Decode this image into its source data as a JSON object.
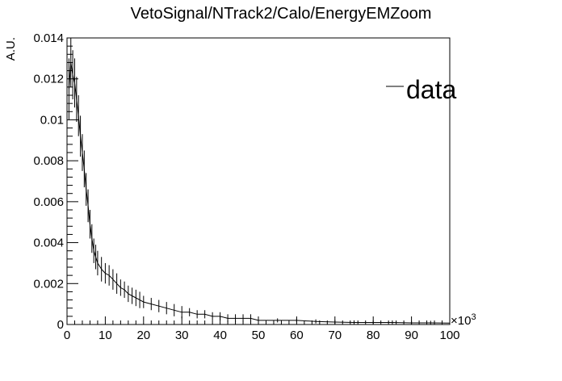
{
  "chart_data": {
    "type": "line",
    "title": "VetoSignal/NTrack2/Calo/EnergyEMZoom",
    "xlabel": "",
    "ylabel": "A.U.",
    "x_multiplier_label": "×10",
    "x_multiplier_exponent": "3",
    "xlim": [
      0,
      100
    ],
    "ylim": [
      0,
      0.014
    ],
    "x_ticks": [
      0,
      10,
      20,
      30,
      40,
      50,
      60,
      70,
      80,
      90,
      100
    ],
    "x_tick_labels": [
      "0",
      "10",
      "20",
      "30",
      "40",
      "50",
      "60",
      "70",
      "80",
      "90",
      "100"
    ],
    "y_ticks": [
      0,
      0.002,
      0.004,
      0.006,
      0.008,
      0.01,
      0.012,
      0.014
    ],
    "y_tick_labels": [
      "0",
      "0.002",
      "0.004",
      "0.006",
      "0.008",
      "0.01",
      "0.012",
      "0.014"
    ],
    "grid": false,
    "legend_position": "top-right",
    "series": [
      {
        "name": "data",
        "color": "#000000",
        "x": [
          0.5,
          1,
          1.5,
          2,
          2.5,
          3,
          3.5,
          4,
          4.5,
          5,
          5.5,
          6,
          6.5,
          7,
          7.5,
          8,
          9,
          10,
          11,
          12,
          13,
          14,
          15,
          16,
          17,
          18,
          19,
          20,
          22,
          24,
          26,
          28,
          30,
          32,
          34,
          36,
          38,
          40,
          42,
          44,
          46,
          48,
          50,
          55,
          60,
          65,
          70,
          75,
          80,
          85,
          90,
          95,
          100
        ],
        "y": [
          0.0115,
          0.0128,
          0.0122,
          0.0118,
          0.011,
          0.0102,
          0.0092,
          0.0084,
          0.0076,
          0.0066,
          0.0058,
          0.0049,
          0.0042,
          0.0036,
          0.0033,
          0.003,
          0.0027,
          0.0025,
          0.0024,
          0.0022,
          0.002,
          0.0018,
          0.0017,
          0.0015,
          0.0014,
          0.0013,
          0.0012,
          0.0011,
          0.001,
          0.0009,
          0.0008,
          0.0007,
          0.0006,
          0.0006,
          0.0005,
          0.0005,
          0.0004,
          0.0004,
          0.0003,
          0.0003,
          0.0003,
          0.0003,
          0.0002,
          0.0002,
          0.0002,
          0.00015,
          0.00012,
          0.0001,
          0.0001,
          0.0001,
          8e-05,
          8e-05,
          7e-05
        ],
        "err": [
          0.0015,
          0.0012,
          0.0012,
          0.0012,
          0.0011,
          0.001,
          0.001,
          0.0009,
          0.0009,
          0.0008,
          0.0008,
          0.0007,
          0.0007,
          0.0006,
          0.0006,
          0.0006,
          0.0006,
          0.0005,
          0.0005,
          0.0005,
          0.0005,
          0.0004,
          0.0004,
          0.0004,
          0.0004,
          0.0004,
          0.0004,
          0.0003,
          0.0003,
          0.0003,
          0.0003,
          0.0003,
          0.0003,
          0.0002,
          0.0002,
          0.0002,
          0.0002,
          0.0002,
          0.0002,
          0.0002,
          0.0002,
          0.0002,
          0.0001,
          0.0001,
          0.0001,
          0.0001,
          0.0001,
          0.0001,
          0.0001,
          0.0001,
          0.0001,
          0.0001,
          0.0001
        ]
      }
    ]
  }
}
